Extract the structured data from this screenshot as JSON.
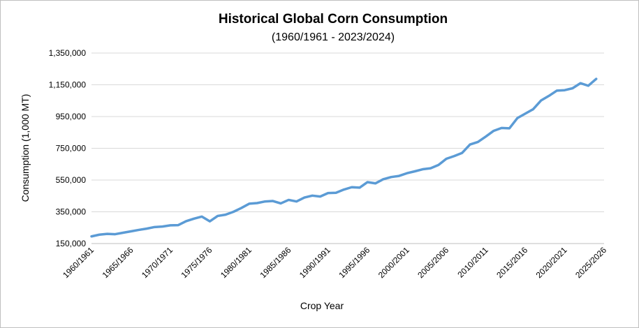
{
  "chart_data": {
    "type": "line",
    "title": "Historical Global Corn Consumption",
    "subtitle": "(1960/1961 - 2023/2024)",
    "xlabel": "Crop Year",
    "ylabel": "Consumption (1,000 MT)",
    "ylim": [
      150000,
      1350000
    ],
    "yticks": [
      150000,
      350000,
      550000,
      750000,
      950000,
      1150000,
      1350000
    ],
    "ytick_labels": [
      "150,000",
      "350,000",
      "550,000",
      "750,000",
      "950,000",
      "1,150,000",
      "1,350,000"
    ],
    "xticks": [
      "1960/1961",
      "1965/1966",
      "1970/1971",
      "1975/1976",
      "1980/1981",
      "1985/1986",
      "1990/1991",
      "1995/1996",
      "2000/2001",
      "2005/2006",
      "2010/2011",
      "2015/2016",
      "2020/2021",
      "2025/2026"
    ],
    "grid": "horizontal",
    "line_color": "#5b9bd5",
    "x": [
      "1960/1961",
      "1961/1962",
      "1962/1963",
      "1963/1964",
      "1964/1965",
      "1965/1966",
      "1966/1967",
      "1967/1968",
      "1968/1969",
      "1969/1970",
      "1970/1971",
      "1971/1972",
      "1972/1973",
      "1973/1974",
      "1974/1975",
      "1975/1976",
      "1976/1977",
      "1977/1978",
      "1978/1979",
      "1979/1980",
      "1980/1981",
      "1981/1982",
      "1982/1983",
      "1983/1984",
      "1984/1985",
      "1985/1986",
      "1986/1987",
      "1987/1988",
      "1988/1989",
      "1989/1990",
      "1990/1991",
      "1991/1992",
      "1992/1993",
      "1993/1994",
      "1994/1995",
      "1995/1996",
      "1996/1997",
      "1997/1998",
      "1998/1999",
      "1999/2000",
      "2000/2001",
      "2001/2002",
      "2002/2003",
      "2003/2004",
      "2004/2005",
      "2005/2006",
      "2006/2007",
      "2007/2008",
      "2008/2009",
      "2009/2010",
      "2010/2011",
      "2011/2012",
      "2012/2013",
      "2013/2014",
      "2014/2015",
      "2015/2016",
      "2016/2017",
      "2017/2018",
      "2018/2019",
      "2019/2020",
      "2020/2021",
      "2021/2022",
      "2022/2023",
      "2023/2024",
      "2024/2025"
    ],
    "series": [
      {
        "values": [
          195000,
          206000,
          211000,
          209000,
          218000,
          227000,
          236000,
          244000,
          254000,
          257000,
          265000,
          266000,
          291000,
          307000,
          320000,
          290000,
          324000,
          332000,
          350000,
          374000,
          401000,
          405000,
          415000,
          418000,
          403000,
          425000,
          415000,
          440000,
          452000,
          446000,
          468000,
          470000,
          490000,
          505000,
          502000,
          537000,
          529000,
          555000,
          569000,
          576000,
          593000,
          605000,
          618000,
          624000,
          645000,
          684000,
          701000,
          721000,
          774000,
          790000,
          824000,
          860000,
          878000,
          876000,
          940000,
          968000,
          996000,
          1051000,
          1080000,
          1113000,
          1116000,
          1128000,
          1160000,
          1144000,
          1187000
        ]
      }
    ]
  }
}
